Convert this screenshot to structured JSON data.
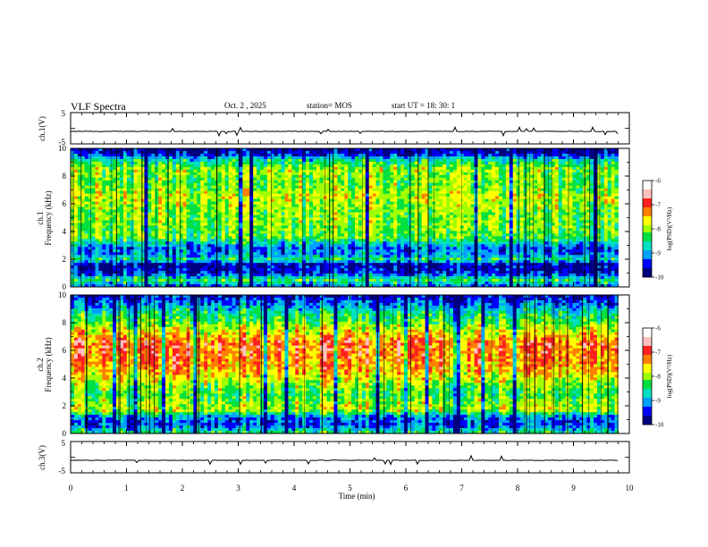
{
  "header": {
    "title": "VLF Spectra",
    "date": "Oct. 2  , 2025",
    "station": "station= MOS",
    "start_ut": "start  UT  =   18: 30: 1"
  },
  "colors": {
    "spectrum": [
      "#000080",
      "#0000ff",
      "#00a0ff",
      "#00e0c0",
      "#00e040",
      "#a0ff00",
      "#ffff00",
      "#ff8000",
      "#ff2020",
      "#ffc0c0",
      "#ffffff"
    ],
    "trace": "#000000"
  },
  "chart_data": [
    {
      "type": "line",
      "name": "ch1-voltage",
      "ylabel": "ch.1(V)",
      "ylim": [
        -5,
        5
      ],
      "ytick_labels": [
        "5",
        "-5"
      ],
      "xlim": [
        0,
        10
      ],
      "approx_level": -1,
      "unit_note": "flat trace near -1 V with sparse impulses"
    },
    {
      "type": "heatmap",
      "name": "ch1-spectrogram",
      "ylabel_line1": "ch.1",
      "ylabel_line2": "Frequency (kHz)",
      "xlim": [
        0,
        10
      ],
      "data_end_min": 9.8,
      "ylim": [
        0,
        10
      ],
      "ytick_labels": [
        "0",
        "2",
        "4",
        "6",
        "8",
        "10"
      ],
      "band_profile": {
        "freq_khz": [
          0,
          0.5,
          1.0,
          1.6,
          2.0,
          2.3,
          2.8,
          3.5,
          4.5,
          5.5,
          6.5,
          7.5,
          8.5,
          9.2,
          9.6,
          10
        ],
        "log_psd": [
          -9.3,
          -8.2,
          -9.5,
          -9.7,
          -8.4,
          -9.0,
          -9.2,
          -8.1,
          -7.9,
          -7.9,
          -7.6,
          -8.0,
          -7.8,
          -8.6,
          -9.6,
          -9.8
        ]
      },
      "colorbar": {
        "label": "log(PSD)(V²/Hz)",
        "range": [
          -10,
          -6
        ],
        "tick_labels": [
          "-6",
          "-7",
          "-8",
          "-9",
          "-10"
        ]
      }
    },
    {
      "type": "heatmap",
      "name": "ch2-spectrogram",
      "ylabel_line1": "ch.2",
      "ylabel_line2": "Frequency (kHz)",
      "xlim": [
        0,
        10
      ],
      "data_end_min": 9.8,
      "ylim": [
        0,
        10
      ],
      "ytick_labels": [
        "0",
        "2",
        "4",
        "6",
        "8",
        "10"
      ],
      "band_profile": {
        "freq_khz": [
          0,
          0.6,
          1.2,
          1.7,
          2.2,
          2.8,
          3.5,
          4.5,
          5.5,
          6.5,
          7.2,
          8.0,
          8.8,
          9.5,
          10
        ],
        "log_psd": [
          -8.2,
          -9.3,
          -9.0,
          -7.6,
          -7.8,
          -8.1,
          -7.8,
          -7.2,
          -6.9,
          -6.8,
          -7.3,
          -8.0,
          -8.5,
          -9.2,
          -9.6
        ]
      },
      "colorbar": {
        "label": "log(PSD)(V²/Hz)",
        "range": [
          -10,
          -6
        ],
        "tick_labels": [
          "-6",
          "-7",
          "-8",
          "-9",
          "-10"
        ]
      }
    },
    {
      "type": "line",
      "name": "ch3-voltage",
      "ylabel": "ch.3(V)",
      "ylim": [
        -5,
        5
      ],
      "ytick_labels": [
        "5",
        "-5"
      ],
      "xlim": [
        0,
        10
      ],
      "approx_level": -1,
      "unit_note": "flat trace near -1 V with sparse impulses"
    }
  ],
  "xaxis": {
    "label": "Time  (min)",
    "tick_labels": [
      "0",
      "1",
      "2",
      "3",
      "4",
      "5",
      "6",
      "7",
      "8",
      "9",
      "10"
    ]
  }
}
